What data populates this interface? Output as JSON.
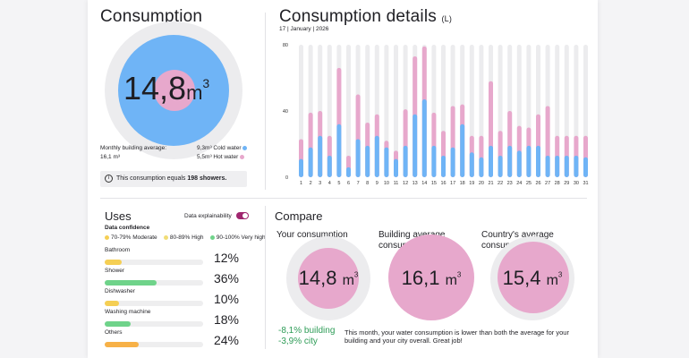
{
  "consumption": {
    "title": "Consumption",
    "value": "14,8",
    "unit": "m",
    "unit_sup": "3",
    "building_avg_label": "Monthly building average:",
    "building_avg_value": "16,1 m³",
    "cold_water": "9,3m³ Cold water",
    "hot_water": "5,5m³ Hot water",
    "hot_share": 0.37,
    "equals_prefix": "This consumption equals ",
    "equals_bold": "198 showers.",
    "info_icon": "info-icon"
  },
  "details": {
    "title": "Consumption details",
    "title_unit": "(L)",
    "date": "17 | January | 2026",
    "y_ticks": [
      "0",
      "40",
      "80"
    ]
  },
  "chart_data": {
    "type": "bar",
    "ylim": [
      0,
      80
    ],
    "categories": [
      "1",
      "2",
      "3",
      "4",
      "5",
      "6",
      "7",
      "8",
      "9",
      "10",
      "11",
      "12",
      "13",
      "14",
      "15",
      "16",
      "17",
      "18",
      "19",
      "20",
      "21",
      "22",
      "23",
      "24",
      "25",
      "26",
      "27",
      "28",
      "29",
      "30",
      "31"
    ],
    "series": [
      {
        "values": [
          11,
          18,
          25,
          13,
          32,
          6,
          23,
          19,
          25,
          18,
          11,
          19,
          38,
          47,
          19,
          13,
          18,
          32,
          15,
          12,
          19,
          13,
          19,
          16,
          19,
          19,
          13,
          13,
          13,
          13,
          12
        ]
      },
      {
        "values": [
          12,
          21,
          15,
          12,
          34,
          7,
          27,
          14,
          13,
          4,
          5,
          22,
          35,
          32,
          20,
          15,
          25,
          12,
          10,
          13,
          39,
          15,
          21,
          15,
          11,
          19,
          30,
          12,
          12,
          12,
          13
        ]
      }
    ],
    "colors": {
      "cold": "#6fb4f6",
      "hot": "#e7a8cc",
      "track": "#ececee"
    }
  },
  "uses": {
    "title": "Uses",
    "toggle_label": "Data explainability",
    "confidence_title": "Data confidence",
    "legend": [
      {
        "label": "70-79% Moderate",
        "color": "#f5cf54"
      },
      {
        "label": "80-89% High",
        "color": "#f1dd77"
      },
      {
        "label": "90-100% Very high",
        "color": "#6fd38a"
      }
    ],
    "items": [
      {
        "label": "Bathroom",
        "pct": "12%",
        "fill": 0.12,
        "color": "#f5cf54"
      },
      {
        "label": "Shower",
        "pct": "36%",
        "fill": 0.36,
        "color": "#6fd38a"
      },
      {
        "label": "Dishwasher",
        "pct": "10%",
        "fill": 0.1,
        "color": "#f5cf54"
      },
      {
        "label": "Washing machine",
        "pct": "18%",
        "fill": 0.18,
        "color": "#6fd38a"
      },
      {
        "label": "Others",
        "pct": "24%",
        "fill": 0.24,
        "color": "#f7b147"
      }
    ]
  },
  "compare": {
    "title": "Compare",
    "yours_label": "Your consumption",
    "yours_value": "14,8",
    "building_label": "Building average consumption",
    "building_value": "16,1",
    "country_label": "Country's average consumption",
    "country_value": "15,4",
    "unit": "m",
    "unit_sup": "3",
    "building_delta": "-8,1% building",
    "city_delta": "-3,9% city",
    "message": "This month, your water consumption is lower than both the average for your building and your city overall. Great job!"
  }
}
